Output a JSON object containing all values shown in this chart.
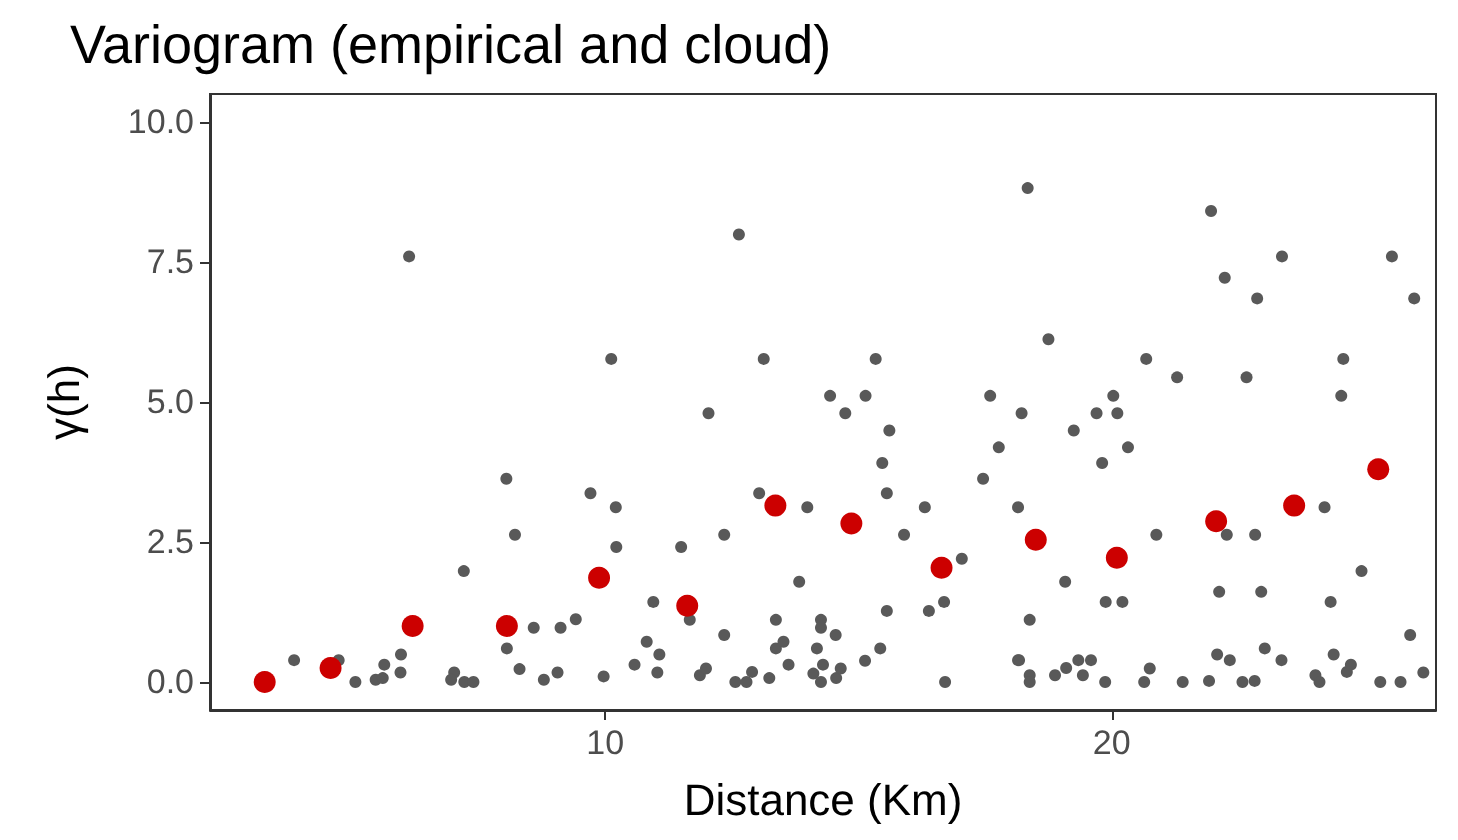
{
  "chart_data": {
    "type": "scatter",
    "title": "Variogram (empirical and cloud)",
    "xlabel": "Distance (Km)",
    "ylabel": "γ(h)",
    "xlim": [
      2.2,
      26.4
    ],
    "xticks": [
      10,
      20
    ],
    "ylim": [
      -0.5,
      10.5
    ],
    "yticks": [
      {
        "value": 0,
        "label": "0.0"
      },
      {
        "value": 2.5,
        "label": "2.5"
      },
      {
        "value": 5,
        "label": "5.0"
      },
      {
        "value": 7.5,
        "label": "7.5"
      },
      {
        "value": 10,
        "label": "10.0"
      }
    ],
    "grid": false,
    "marker": "circle",
    "series": [
      {
        "color": "#595959",
        "x": [
          3.86,
          4.74,
          5.07,
          5.47,
          5.64,
          5.61,
          5.97,
          5.96,
          6.13,
          7.02,
          6.96,
          7.22,
          7.4,
          7.21,
          8.05,
          8.22,
          8.06,
          8.31,
          8.59,
          8.79,
          9.06,
          9.12,
          9.42,
          9.71,
          9.97,
          10.12,
          10.21,
          10.22,
          10.95,
          10.82,
          11.07,
          10.58,
          11.03,
          11.5,
          11.67,
          12.04,
          12.35,
          12.35,
          11.87,
          11.99,
          12.64,
          12.57,
          12.79,
          12.9,
          13.04,
          13.13,
          13.24,
          13.37,
          13.37,
          13.52,
          13.62,
          13.83,
          13.99,
          14.18,
          14.26,
          14.26,
          14.55,
          14.3,
          14.11,
          14.26,
          14.56,
          14.65,
          14.44,
          14.74,
          15.14,
          15.34,
          15.61,
          15.47,
          15.56,
          15.9,
          15.13,
          15.43,
          15.56,
          16.31,
          16.39,
          16.69,
          17.04,
          16.71,
          17.46,
          17.77,
          17.6,
          18.15,
          18.34,
          18.75,
          18.22,
          18.15,
          18.38,
          18.17,
          18.38,
          18.38,
          19.08,
          19.25,
          18.88,
          19.1,
          19.34,
          19.59,
          19.43,
          19.7,
          19.81,
          20.03,
          20.11,
          20.32,
          19.88,
          20.21,
          19.87,
          20.68,
          20.88,
          21.29,
          20.75,
          20.64,
          21.4,
          21.92,
          21.96,
          22.23,
          22.12,
          22.27,
          22.08,
          22.33,
          22.58,
          22.82,
          22.87,
          22.66,
          22.83,
          22.95,
          23.02,
          23.35,
          23.36,
          24.2,
          24.32,
          24.38,
          24.02,
          24.1,
          24.64,
          24.72,
          24.53,
          24.57,
          24.93,
          25.53,
          25.89,
          25.97,
          25.3,
          25.7,
          26.15
        ],
        "values": [
          0.39,
          0.39,
          0,
          0.04,
          0.31,
          0.07,
          0.49,
          0.17,
          7.6,
          0.17,
          0.04,
          0,
          0,
          1.98,
          3.63,
          2.63,
          0.6,
          0.23,
          0.97,
          0.04,
          0.17,
          0.97,
          1.12,
          3.37,
          0.1,
          5.77,
          3.12,
          2.41,
          1.43,
          0.72,
          0.49,
          0.31,
          0.17,
          2.41,
          1.11,
          4.8,
          2.63,
          0.84,
          0.12,
          0.24,
          7.99,
          0,
          0,
          0.18,
          3.37,
          5.77,
          0.07,
          1.11,
          0.6,
          0.72,
          0.31,
          1.79,
          3.12,
          0.6,
          1.11,
          0.97,
          0.84,
          0.31,
          0.15,
          0,
          0.07,
          0.24,
          5.11,
          4.8,
          5.11,
          5.77,
          4.49,
          3.91,
          3.37,
          2.63,
          0.38,
          0.6,
          1.27,
          3.12,
          1.27,
          1.43,
          2.2,
          0,
          3.63,
          4.19,
          5.11,
          0.39,
          8.82,
          6.12,
          4.8,
          3.12,
          1.11,
          0.39,
          0.12,
          0,
          1.79,
          4.49,
          0.12,
          0.25,
          0.39,
          0.39,
          0.12,
          4.8,
          3.91,
          5.11,
          4.8,
          4.19,
          1.43,
          1.43,
          0,
          5.77,
          2.63,
          5.44,
          0.24,
          0,
          0,
          0.02,
          8.41,
          7.22,
          1.61,
          2.63,
          0.49,
          0.39,
          0,
          0.02,
          6.85,
          5.44,
          2.63,
          1.61,
          0.6,
          0.39,
          7.6,
          3.12,
          1.43,
          0.49,
          0.12,
          0,
          0.18,
          0.31,
          5.11,
          5.77,
          1.98,
          7.6,
          0.84,
          6.85,
          0,
          0,
          0.17
        ]
      },
      {
        "color": "#cc0000",
        "x": [
          3.28,
          4.58,
          6.2,
          8.06,
          9.88,
          11.62,
          13.36,
          14.86,
          16.64,
          18.5,
          20.1,
          22.06,
          23.6,
          25.26
        ],
        "values": [
          0,
          0.25,
          1,
          1,
          1.86,
          1.36,
          3.15,
          2.83,
          2.04,
          2.54,
          2.22,
          2.87,
          3.15,
          3.8
        ]
      }
    ]
  }
}
